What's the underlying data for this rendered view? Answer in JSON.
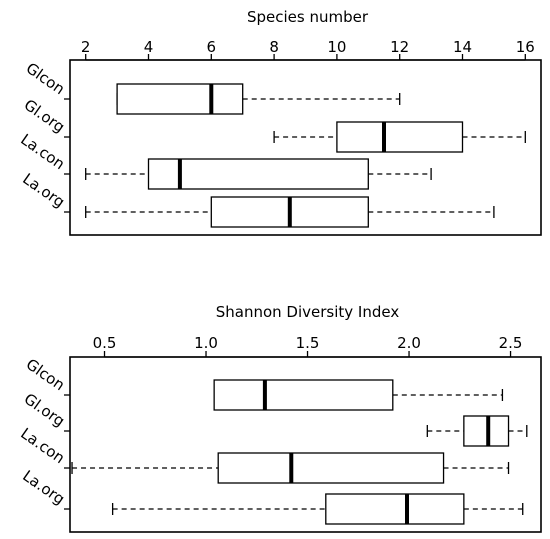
{
  "chart_data": [
    {
      "type": "boxplot",
      "title": "Species number",
      "xlim": [
        1.5,
        16.5
      ],
      "ticks": [
        2,
        4,
        6,
        8,
        10,
        12,
        14,
        16
      ],
      "tick_labels": [
        "2",
        "4",
        "6",
        "8",
        "10",
        "12",
        "14",
        "16"
      ],
      "categories": [
        "Glcon",
        "Gl.org",
        "La.con",
        "La.org"
      ],
      "boxes": [
        {
          "category": "Glcon",
          "min": 3,
          "q1": 3,
          "median": 6,
          "q3": 7,
          "max": 12
        },
        {
          "category": "Gl.org",
          "min": 8,
          "q1": 10,
          "median": 11.5,
          "q3": 14,
          "max": 16
        },
        {
          "category": "La.con",
          "min": 2,
          "q1": 4,
          "median": 5,
          "q3": 11,
          "max": 13
        },
        {
          "category": "La.org",
          "min": 2,
          "q1": 6,
          "median": 8.5,
          "q3": 11,
          "max": 15
        }
      ]
    },
    {
      "type": "boxplot",
      "title": "Shannon Diversity Index",
      "xlim": [
        0.33,
        2.65
      ],
      "ticks": [
        0.5,
        1.0,
        1.5,
        2.0,
        2.5
      ],
      "tick_labels": [
        "0.5",
        "1.0",
        "1.5",
        "2.0",
        "2.5"
      ],
      "categories": [
        "Glcon",
        "Gl.org",
        "La.con",
        "La.org"
      ],
      "boxes": [
        {
          "category": "Glcon",
          "min": 1.04,
          "q1": 1.04,
          "median": 1.29,
          "q3": 1.92,
          "max": 2.46
        },
        {
          "category": "Gl.org",
          "min": 2.09,
          "q1": 2.27,
          "median": 2.39,
          "q3": 2.49,
          "max": 2.58
        },
        {
          "category": "La.con",
          "min": 0.34,
          "q1": 1.06,
          "median": 1.42,
          "q3": 2.17,
          "max": 2.49
        },
        {
          "category": "La.org",
          "min": 0.54,
          "q1": 1.59,
          "median": 1.99,
          "q3": 2.27,
          "max": 2.56
        }
      ]
    }
  ]
}
